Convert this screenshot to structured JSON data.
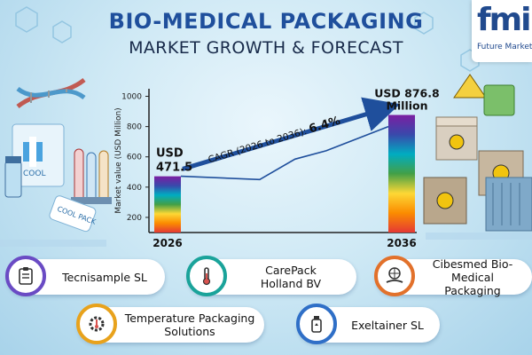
{
  "header": {
    "title": "BIO-MEDICAL PACKAGING",
    "subtitle": "MARKET GROWTH & FORECAST"
  },
  "logo": {
    "mark": "fmi",
    "text": "Future Market"
  },
  "chart_data": {
    "type": "bar",
    "categories": [
      "2026",
      "2036"
    ],
    "values": [
      471.5,
      876.8
    ],
    "ylabel": "Market value (USD Million)",
    "ylim": [
      100,
      1050
    ],
    "yticks": [
      200,
      400,
      600,
      800,
      1000
    ],
    "grid": false,
    "trend_line": [
      [
        0,
        471.5
      ],
      [
        0.38,
        450
      ],
      [
        0.55,
        585
      ],
      [
        0.7,
        640
      ],
      [
        1.0,
        800
      ]
    ],
    "data_labels": [
      "USD\n471.5",
      "USD 876.8\nMillion"
    ],
    "annotation": {
      "prefix": "CAGR (2026 to 2036): ",
      "value": "6.4%"
    },
    "colors": {
      "bar_gradient": [
        "#7b1fa2",
        "#3949ab",
        "#00acc1",
        "#43a047",
        "#fdd835",
        "#fb8c00",
        "#e53935"
      ],
      "trend": "#1f4f9c",
      "axis": "#222222"
    }
  },
  "companies": [
    {
      "name": "Tecnisample SL",
      "icon": "clipboard-icon",
      "ring": "#6a4bc4"
    },
    {
      "name": "CarePack\nHolland BV",
      "icon": "thermometer-icon",
      "ring": "#1aa39a"
    },
    {
      "name": "Cibesmed Bio-Medical\nPackaging",
      "icon": "hand-globe-icon",
      "ring": "#e2712b"
    },
    {
      "name": "Temperature Packaging\nSolutions",
      "icon": "gear-thermometer-icon",
      "ring": "#e8a21c"
    },
    {
      "name": "Exeltainer SL",
      "icon": "bottle-icon",
      "ring": "#2f6fc7"
    }
  ]
}
